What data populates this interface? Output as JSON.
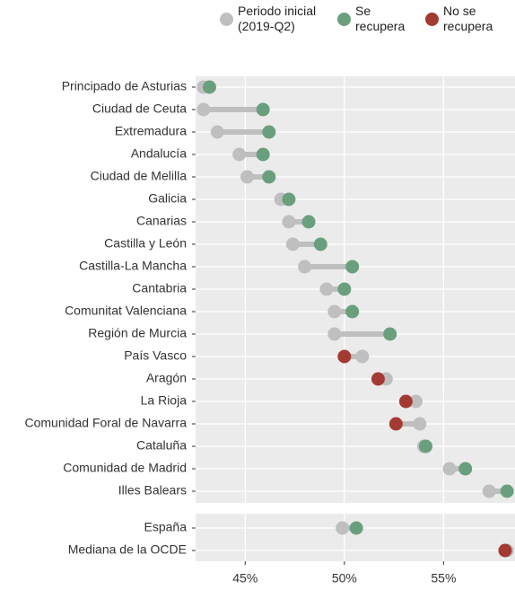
{
  "chart_data": [
    {
      "type": "dumbbell",
      "categories": [
        "Principado de Asturias",
        "Ciudad de Ceuta",
        "Extremadura",
        "Andalucía",
        "Ciudad de Melilla",
        "Galicia",
        "Canarias",
        "Castilla y León",
        "Castilla-La Mancha",
        "Cantabria",
        "Comunitat Valenciana",
        "Región de Murcia",
        "País Vasco",
        "Aragón",
        "La Rioja",
        "Comunidad Foral de Navarra",
        "Cataluña",
        "Comunidad de Madrid",
        "Illes Balears"
      ],
      "series": [
        {
          "name": "Periodo inicial (2019-Q2)",
          "color": "#bfbfbf",
          "values": [
            42.9,
            42.9,
            43.6,
            44.7,
            45.1,
            46.8,
            47.2,
            47.4,
            48.0,
            49.1,
            49.5,
            49.5,
            50.9,
            52.1,
            53.6,
            53.8,
            54.0,
            55.3,
            57.3
          ]
        },
        {
          "name": "Se recupera",
          "color": "#6a9f7d",
          "values": [
            43.2,
            45.9,
            46.2,
            45.9,
            46.2,
            47.2,
            48.2,
            48.8,
            50.4,
            50.0,
            50.4,
            52.3,
            null,
            null,
            null,
            null,
            54.1,
            56.1,
            58.2
          ]
        },
        {
          "name": "No se recupera",
          "color": "#a33b33",
          "values": [
            null,
            null,
            null,
            null,
            null,
            null,
            null,
            null,
            null,
            null,
            null,
            null,
            50.0,
            51.7,
            53.1,
            52.6,
            null,
            null,
            null
          ]
        }
      ],
      "xlim": [
        42.5,
        58.6
      ],
      "xticks": [
        {
          "value": 45,
          "label": "45%"
        },
        {
          "value": 50,
          "label": "50%"
        },
        {
          "value": 55,
          "label": "55%"
        }
      ]
    },
    {
      "type": "dumbbell",
      "categories": [
        "España",
        "Mediana de la OCDE"
      ],
      "series": [
        {
          "color": "#bfbfbf",
          "values": [
            49.9,
            58.2
          ]
        },
        {
          "color": "#6a9f7d",
          "values": [
            50.6,
            null
          ]
        },
        {
          "color": "#a33b33",
          "values": [
            null,
            58.1
          ]
        }
      ],
      "xlim": [
        42.5,
        58.6
      ],
      "xticks": [
        {
          "value": 45,
          "label": "45%"
        },
        {
          "value": 50,
          "label": "50%"
        },
        {
          "value": 55,
          "label": "55%"
        }
      ]
    }
  ]
}
